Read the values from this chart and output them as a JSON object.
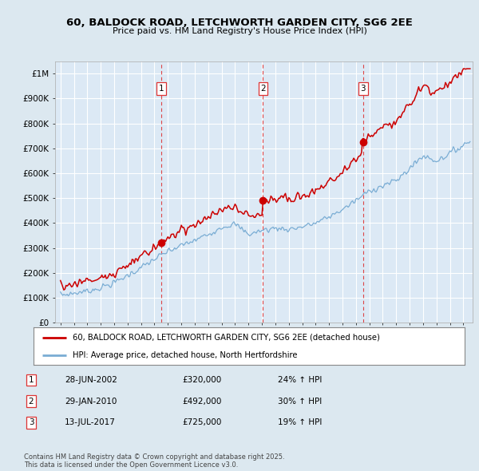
{
  "title": "60, BALDOCK ROAD, LETCHWORTH GARDEN CITY, SG6 2EE",
  "subtitle": "Price paid vs. HM Land Registry's House Price Index (HPI)",
  "xlim_left": 1994.6,
  "xlim_right": 2025.7,
  "ylim_bottom": 0,
  "ylim_top": 1050000,
  "background_color": "#dce8f0",
  "plot_bg_color": "#dce9f5",
  "red_color": "#cc0000",
  "blue_color": "#7aadd4",
  "purchase_dates": [
    2002.49,
    2010.08,
    2017.54
  ],
  "purchase_prices": [
    320000,
    492000,
    725000
  ],
  "purchase_labels": [
    "1",
    "2",
    "3"
  ],
  "vline_color": "#dd3333",
  "legend_label_red": "60, BALDOCK ROAD, LETCHWORTH GARDEN CITY, SG6 2EE (detached house)",
  "legend_label_blue": "HPI: Average price, detached house, North Hertfordshire",
  "table_rows": [
    [
      "1",
      "28-JUN-2002",
      "£320,000",
      "24% ↑ HPI"
    ],
    [
      "2",
      "29-JAN-2010",
      "£492,000",
      "30% ↑ HPI"
    ],
    [
      "3",
      "13-JUL-2017",
      "£725,000",
      "19% ↑ HPI"
    ]
  ],
  "footer": "Contains HM Land Registry data © Crown copyright and database right 2025.\nThis data is licensed under the Open Government Licence v3.0.",
  "ytick_labels": [
    "£0",
    "£100K",
    "£200K",
    "£300K",
    "£400K",
    "£500K",
    "£600K",
    "£700K",
    "£800K",
    "£900K",
    "£1M"
  ],
  "ytick_values": [
    0,
    100000,
    200000,
    300000,
    400000,
    500000,
    600000,
    700000,
    800000,
    900000,
    1000000
  ]
}
